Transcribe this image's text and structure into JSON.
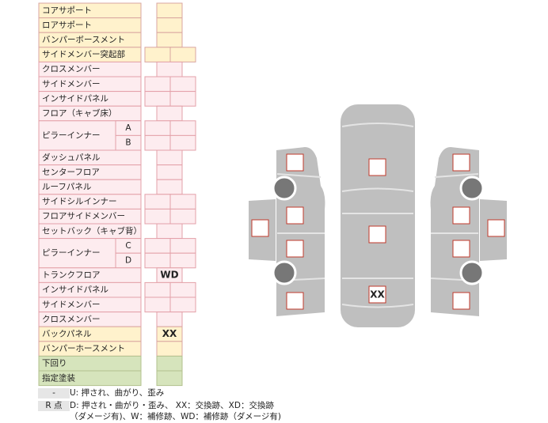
{
  "table": {
    "rows": [
      {
        "label": "コアサポート"
      },
      {
        "label": "ロアサポート"
      },
      {
        "label": "バンパーボースメント"
      },
      {
        "label": "サイドメンバー突起部"
      },
      {
        "label": "クロスメンバー"
      },
      {
        "label": "サイドメンバー"
      },
      {
        "label": "インサイドパネル"
      },
      {
        "label": "フロア（キャブ床）"
      },
      {
        "label": "ピラーインナー",
        "parts": [
          "A",
          "B"
        ]
      },
      {
        "label": "ダッシュパネル"
      },
      {
        "label": "センターフロア"
      },
      {
        "label": "ルーフパネル"
      },
      {
        "label": "サイドシルインナー"
      },
      {
        "label": "フロアサイドメンバー"
      },
      {
        "label": "セットバック（キャブ背）"
      },
      {
        "label": "ピラーインナー",
        "parts": [
          "C",
          "D"
        ]
      },
      {
        "label": "トランクフロア",
        "mark": "WD"
      },
      {
        "label": "インサイドパネル"
      },
      {
        "label": "サイドメンバー"
      },
      {
        "label": "クロスメンバー"
      },
      {
        "label": "バックパネル",
        "mark": "XX"
      },
      {
        "label": "バンパーホースメント"
      },
      {
        "label": "下回り"
      },
      {
        "label": "指定塗装"
      }
    ]
  },
  "legend": [
    {
      "key": "-",
      "lines": [
        "U: 押され、曲がり、歪み"
      ]
    },
    {
      "key": "R 点",
      "lines": [
        "D: 押され・曲がり・歪み、 XX：交換跡、XD：交換跡",
        "（ダメージ有)、W：補修跡、WD：補修跡（ダメージ有)"
      ]
    }
  ],
  "diagram": {
    "mark": "XX"
  }
}
